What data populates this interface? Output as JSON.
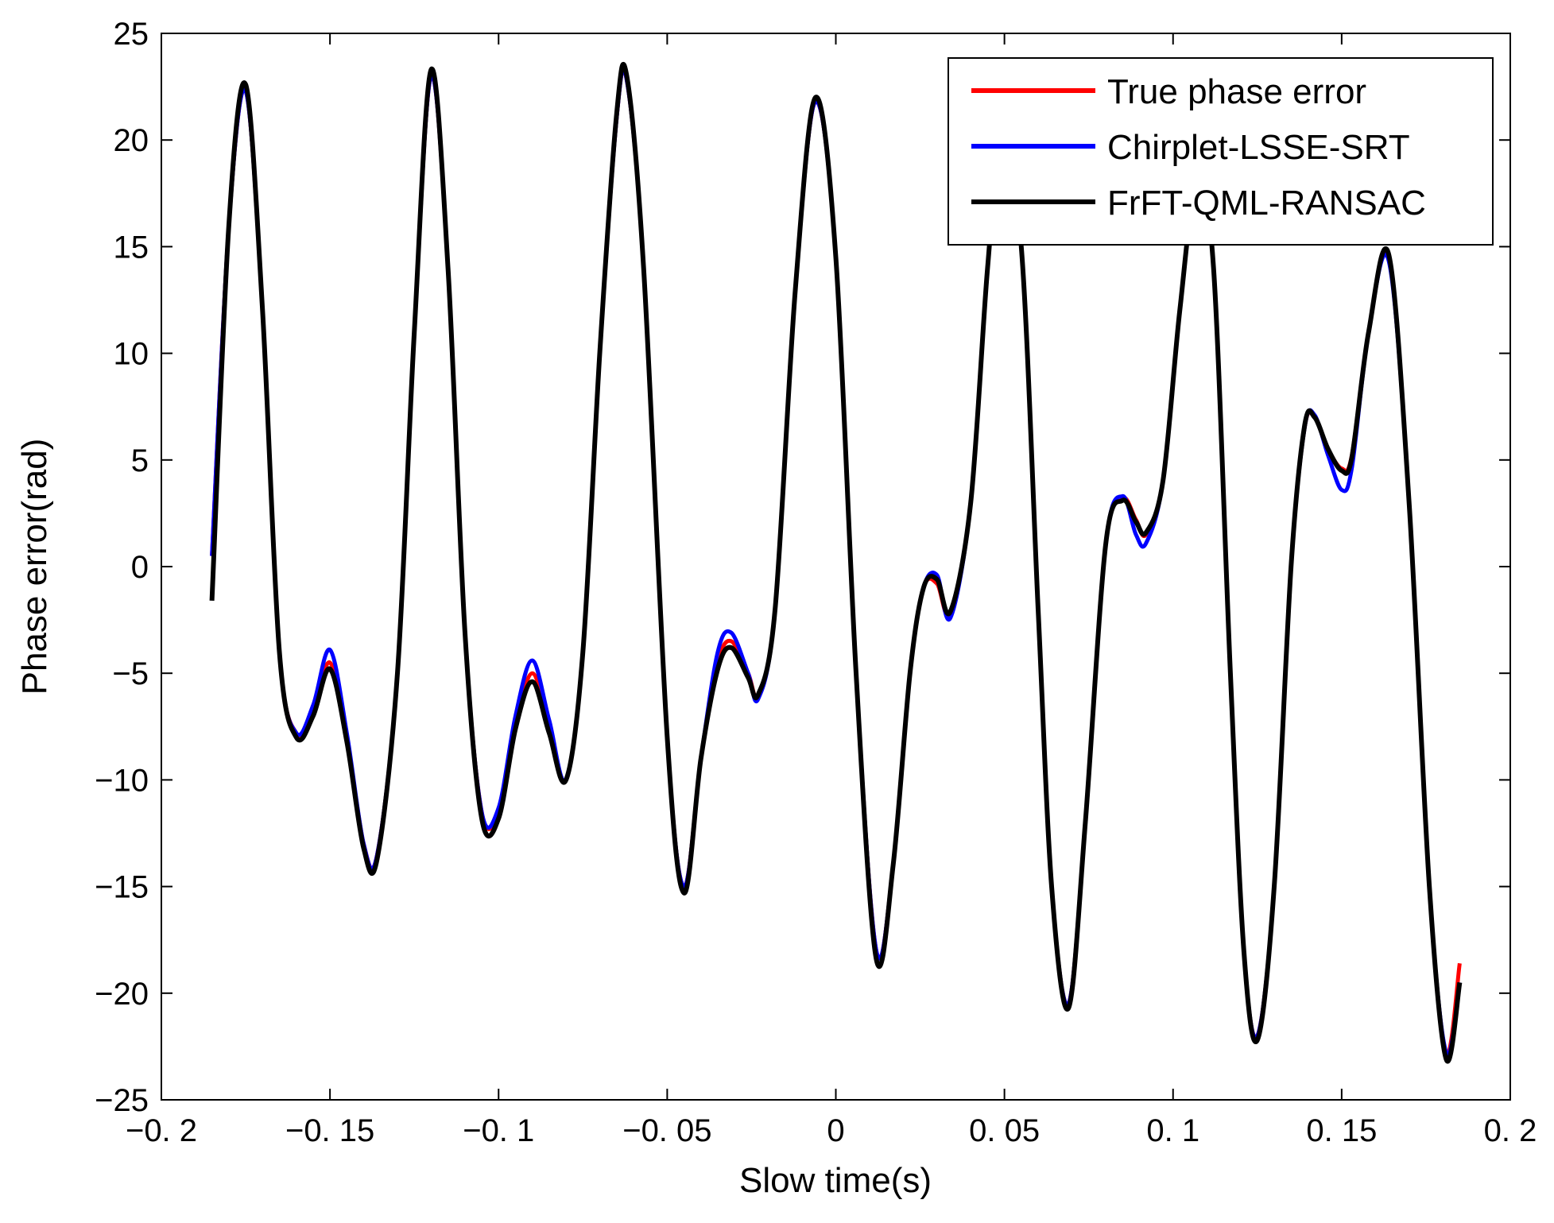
{
  "chart_data": {
    "type": "line",
    "title": "",
    "xlabel": "Slow time(s)",
    "ylabel": "Phase error(rad)",
    "xlim": [
      -0.2,
      0.2
    ],
    "ylim": [
      -25,
      25
    ],
    "x_ticks": [
      -0.2,
      -0.15,
      -0.1,
      -0.05,
      0,
      0.05,
      0.1,
      0.15,
      0.2
    ],
    "x_tick_labels": [
      "−0. 2",
      "−0. 15",
      "−0. 1",
      "−0. 05",
      "0",
      "0. 05",
      "0. 1",
      "0. 15",
      "0. 2"
    ],
    "y_ticks": [
      -25,
      -20,
      -15,
      -10,
      -5,
      0,
      5,
      10,
      15,
      20,
      25
    ],
    "y_tick_labels": [
      "−25",
      "−20",
      "−15",
      "−10",
      "−5",
      "0",
      "5",
      "10",
      "15",
      "20",
      "25"
    ],
    "grid": false,
    "legend_position": "top-right",
    "series": [
      {
        "name": "True phase error",
        "color": "#ff0000",
        "x": [
          -0.185,
          -0.18,
          -0.175,
          -0.17,
          -0.165,
          -0.16,
          -0.155,
          -0.15,
          -0.145,
          -0.14,
          -0.136,
          -0.13,
          -0.125,
          -0.12,
          -0.115,
          -0.11,
          -0.105,
          -0.1,
          -0.095,
          -0.09,
          -0.085,
          -0.08,
          -0.075,
          -0.07,
          -0.065,
          -0.062,
          -0.057,
          -0.05,
          -0.045,
          -0.04,
          -0.035,
          -0.031,
          -0.026,
          -0.023,
          -0.018,
          -0.012,
          -0.006,
          0.0,
          0.006,
          0.012,
          0.017,
          0.022,
          0.026,
          0.03,
          0.034,
          0.04,
          0.045,
          0.049,
          0.055,
          0.06,
          0.064,
          0.069,
          0.074,
          0.08,
          0.085,
          0.089,
          0.092,
          0.097,
          0.102,
          0.107,
          0.112,
          0.117,
          0.121,
          0.125,
          0.13,
          0.135,
          0.139,
          0.142,
          0.146,
          0.15,
          0.153,
          0.158,
          0.164,
          0.17,
          0.176,
          0.181,
          0.185
        ],
        "y": [
          0.5,
          16,
          22.3,
          12,
          -4,
          -7.8,
          -6.8,
          -4.5,
          -8,
          -13,
          -13.5,
          -5,
          11,
          23,
          14,
          -3,
          -11.5,
          -11.5,
          -7.5,
          -5,
          -7.5,
          -10,
          -4,
          10,
          21,
          22.8,
          14,
          -8,
          -15,
          -9,
          -4.5,
          -3.5,
          -5,
          -6,
          -2,
          13,
          21.8,
          14.5,
          -5,
          -18,
          -14,
          -5,
          -1,
          -0.8,
          -2.2,
          3,
          14,
          19.5,
          15,
          -2,
          -15,
          -20.5,
          -12,
          1,
          3.2,
          2.2,
          1.5,
          4,
          12,
          18,
          14,
          -5,
          -18,
          -22,
          -15,
          0,
          6.5,
          7,
          5.5,
          4.6,
          5.2,
          11,
          14.5,
          3,
          -15,
          -22.8,
          -18.6
        ]
      },
      {
        "name": "Chirplet-LSSE-SRT",
        "color": "#0000ff",
        "x": [
          -0.185,
          -0.18,
          -0.175,
          -0.17,
          -0.165,
          -0.16,
          -0.155,
          -0.15,
          -0.145,
          -0.14,
          -0.136,
          -0.13,
          -0.125,
          -0.12,
          -0.115,
          -0.11,
          -0.105,
          -0.1,
          -0.095,
          -0.09,
          -0.085,
          -0.08,
          -0.075,
          -0.07,
          -0.065,
          -0.062,
          -0.057,
          -0.05,
          -0.045,
          -0.04,
          -0.035,
          -0.031,
          -0.026,
          -0.023,
          -0.018,
          -0.012,
          -0.006,
          0.0,
          0.006,
          0.012,
          0.017,
          0.022,
          0.026,
          0.03,
          0.034,
          0.04,
          0.045,
          0.049,
          0.055,
          0.06,
          0.064,
          0.069,
          0.074,
          0.08,
          0.085,
          0.089,
          0.092,
          0.097,
          0.102,
          0.107,
          0.112,
          0.117,
          0.121,
          0.125,
          0.13,
          0.135,
          0.139,
          0.142,
          0.146,
          0.15,
          0.153,
          0.158,
          0.164,
          0.17,
          0.176,
          0.181,
          0.185
        ],
        "y": [
          0.5,
          16,
          22.3,
          12,
          -4,
          -7.8,
          -6.5,
          -3.9,
          -7.8,
          -13,
          -13.5,
          -5,
          11,
          23,
          14,
          -3,
          -11.5,
          -11.3,
          -7,
          -4.4,
          -7.2,
          -10,
          -4,
          10,
          21,
          22.8,
          14,
          -8,
          -15,
          -9,
          -4,
          -3.1,
          -5,
          -6.2,
          -2,
          13,
          21.8,
          14.5,
          -5,
          -18,
          -14,
          -5,
          -1,
          -0.4,
          -2.4,
          3,
          14,
          19.5,
          15,
          -2,
          -15,
          -20.5,
          -12,
          1,
          3.3,
          1.5,
          1.1,
          4,
          12,
          18,
          14,
          -5,
          -18,
          -22,
          -15,
          0,
          6.5,
          7.1,
          5.2,
          3.6,
          4.6,
          11,
          14.3,
          3,
          -15,
          -22.8,
          -19.5
        ]
      },
      {
        "name": "FrFT-QML-RANSAC",
        "color": "#000000",
        "x": [
          -0.185,
          -0.18,
          -0.175,
          -0.17,
          -0.165,
          -0.16,
          -0.155,
          -0.15,
          -0.145,
          -0.14,
          -0.136,
          -0.13,
          -0.125,
          -0.12,
          -0.115,
          -0.11,
          -0.105,
          -0.1,
          -0.095,
          -0.09,
          -0.085,
          -0.08,
          -0.075,
          -0.07,
          -0.065,
          -0.062,
          -0.057,
          -0.05,
          -0.045,
          -0.04,
          -0.035,
          -0.031,
          -0.026,
          -0.023,
          -0.018,
          -0.012,
          -0.006,
          0.0,
          0.006,
          0.012,
          0.017,
          0.022,
          0.026,
          0.03,
          0.034,
          0.04,
          0.045,
          0.049,
          0.055,
          0.06,
          0.064,
          0.069,
          0.074,
          0.08,
          0.085,
          0.089,
          0.092,
          0.097,
          0.102,
          0.107,
          0.112,
          0.117,
          0.121,
          0.125,
          0.13,
          0.135,
          0.139,
          0.142,
          0.146,
          0.15,
          0.153,
          0.158,
          0.164,
          0.17,
          0.176,
          0.181,
          0.185
        ],
        "y": [
          -1.6,
          16,
          22.6,
          12,
          -4,
          -8,
          -7,
          -4.8,
          -8.2,
          -13.2,
          -13.7,
          -5,
          11,
          23.3,
          14,
          -3,
          -11.8,
          -11.8,
          -7.6,
          -5.4,
          -7.8,
          -10,
          -4,
          10,
          21.2,
          23,
          14,
          -8,
          -15.3,
          -9,
          -4.8,
          -3.8,
          -5.2,
          -6,
          -2,
          13,
          22,
          14.5,
          -5,
          -18.4,
          -14,
          -5,
          -1,
          -0.6,
          -2.1,
          3,
          14,
          19.8,
          15,
          -2,
          -15,
          -20.7,
          -12,
          1,
          3.1,
          2.1,
          1.6,
          4,
          12,
          18,
          14,
          -5,
          -18,
          -22.2,
          -15,
          0,
          6.6,
          7,
          5.5,
          4.5,
          5.1,
          11,
          14.6,
          3,
          -15,
          -23.1,
          -19.5
        ]
      }
    ]
  }
}
